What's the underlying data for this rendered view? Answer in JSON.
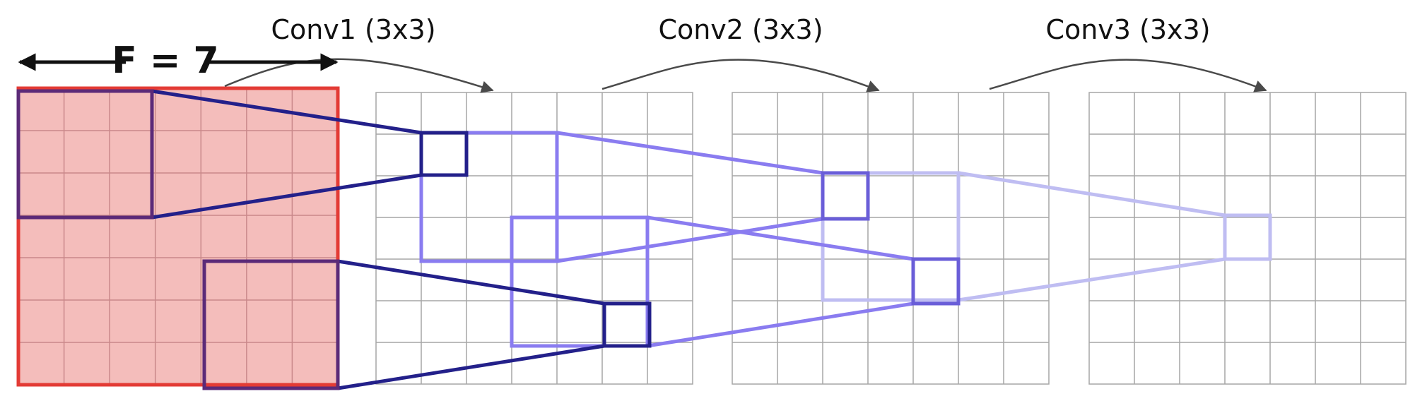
{
  "diagram": {
    "labels": {
      "field": "F = 7",
      "conv1": "Conv1 (3x3)",
      "conv2": "Conv2 (3x3)",
      "conv3": "Conv3 (3x3)"
    },
    "grid": {
      "rows": 7,
      "cols": 7
    },
    "colors": {
      "grid_line": "#a6a6a6",
      "field_fill": "#f4bdbb",
      "field_border": "#e33b35",
      "field_grid": "#c9888a",
      "dark": "#23208a",
      "dark_on_field": "#5b2a78",
      "mid": "#8a7cf0",
      "mid_dark": "#6a5ed8",
      "light": "#bfbdf2",
      "arrow": "#4a4a4a",
      "label": "#111111"
    }
  }
}
